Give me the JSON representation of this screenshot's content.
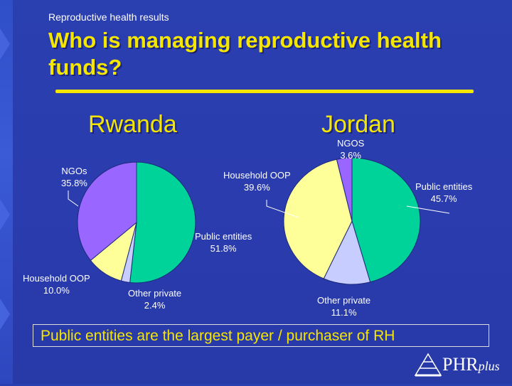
{
  "slide": {
    "kicker": "Reproductive health results",
    "title": "Who is managing reproductive health funds?",
    "footer": "Public entities are the largest payer / purchaser of RH",
    "logo": {
      "main": "PHR",
      "sub": "plus"
    }
  },
  "colors": {
    "title": "#f5e600",
    "public": "#00d39a",
    "household": "#ffff99",
    "other_private": "#c8cdff",
    "ngos": "#9966ff"
  },
  "chart_data": [
    {
      "type": "pie",
      "title": "Rwanda",
      "slices": [
        {
          "label": "Public entities",
          "value": 51.8,
          "value_label": "51.8%",
          "color": "#00d39a"
        },
        {
          "label": "Other private",
          "value": 2.4,
          "value_label": "2.4%",
          "color": "#c8cdff"
        },
        {
          "label": "Household OOP",
          "value": 10.0,
          "value_label": "10.0%",
          "color": "#ffff99"
        },
        {
          "label": "NGOs",
          "value": 35.8,
          "value_label": "35.8%",
          "color": "#9966ff"
        }
      ]
    },
    {
      "type": "pie",
      "title": "Jordan",
      "slices": [
        {
          "label": "Public entities",
          "value": 45.7,
          "value_label": "45.7%",
          "color": "#00d39a"
        },
        {
          "label": "Other private",
          "value": 11.1,
          "value_label": "11.1%",
          "color": "#c8cdff"
        },
        {
          "label": "Household OOP",
          "value": 39.6,
          "value_label": "39.6%",
          "color": "#ffff99"
        },
        {
          "label": "NGOS",
          "value": 3.6,
          "value_label": "3.6%",
          "color": "#9966ff"
        }
      ]
    }
  ]
}
